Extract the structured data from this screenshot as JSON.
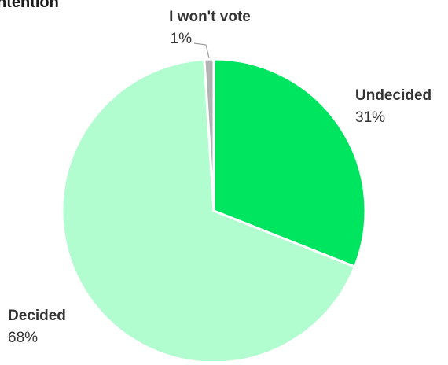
{
  "chart_data": {
    "type": "pie",
    "title": "ntention",
    "slices": [
      {
        "label": "Undecided",
        "value": 31,
        "value_label": "31%",
        "color": "#00e55f"
      },
      {
        "label": "Decided",
        "value": 68,
        "value_label": "68%",
        "color": "#b1fdcf"
      },
      {
        "label": "I won't vote",
        "value": 1,
        "value_label": "1%",
        "color": "#b3b3b3"
      }
    ],
    "start": "12 o'clock",
    "direction": "clockwise",
    "legend": "none",
    "label_color": "#333333",
    "border_color": "#ffffff"
  }
}
